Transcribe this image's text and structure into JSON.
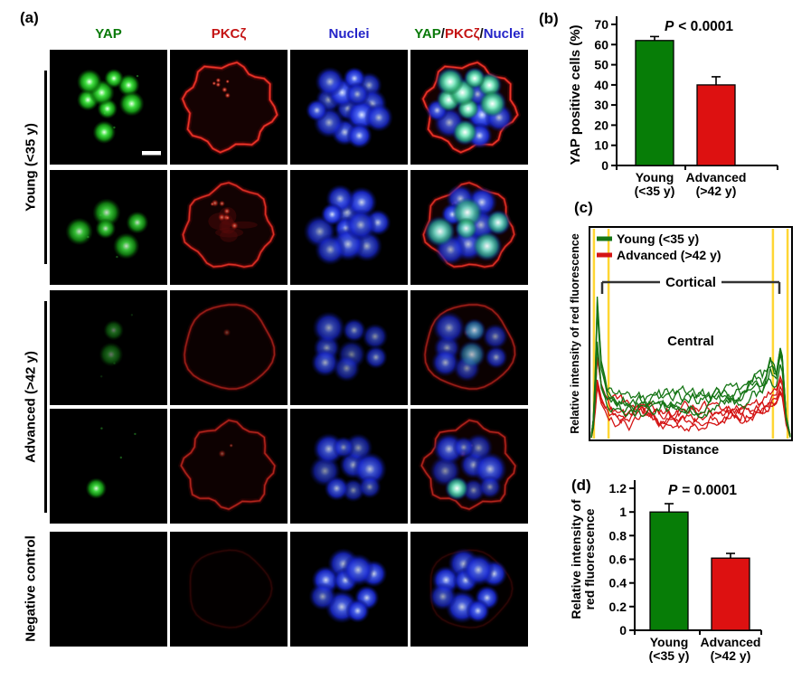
{
  "panels": {
    "a": {
      "label": "(a)",
      "column_headers": [
        {
          "text": "YAP",
          "color": "#0a7a0a"
        },
        {
          "text": "PKCζ",
          "color": "#c41414"
        },
        {
          "text": "Nuclei",
          "color": "#2323c8"
        },
        {
          "text": "YAP/PKCζ/Nuclei",
          "segments": [
            {
              "text": "YAP",
              "color": "#0a7a0a"
            },
            {
              "text": "/",
              "color": "#111111"
            },
            {
              "text": "PKCζ",
              "color": "#c41414"
            },
            {
              "text": "/",
              "color": "#111111"
            },
            {
              "text": "Nuclei",
              "color": "#2323c8"
            }
          ]
        }
      ],
      "row_groups": [
        {
          "label": "Young (<35 y)",
          "bracket": true
        },
        {
          "label": "Advanced (>42 y)",
          "bracket": true
        },
        {
          "label": "Negative control",
          "bracket": false
        }
      ],
      "rows": [
        {
          "name": "young-embryo-1",
          "nuclei": 15,
          "yap_positive": 8,
          "green_intensity": 1.0,
          "red_intensity": 1.0,
          "blue_intensity": 1.0,
          "red_style": "lumpy",
          "speckles": 6,
          "scale_bar": true
        },
        {
          "name": "young-embryo-2",
          "nuclei": 11,
          "yap_positive": 5,
          "green_intensity": 0.85,
          "red_intensity": 0.85,
          "blue_intensity": 1.0,
          "red_style": "textured",
          "speckles": 8,
          "scale_bar": false
        },
        {
          "name": "advanced-embryo-1",
          "nuclei": 8,
          "yap_positive": 2,
          "green_intensity": 0.45,
          "red_intensity": 0.5,
          "blue_intensity": 0.75,
          "red_style": "smooth",
          "speckles": 1,
          "scale_bar": false
        },
        {
          "name": "advanced-embryo-2",
          "nuclei": 9,
          "yap_positive": 1,
          "green_intensity": 0.95,
          "red_intensity": 0.6,
          "blue_intensity": 0.85,
          "red_style": "lumpy",
          "speckles": 2,
          "scale_bar": false
        },
        {
          "name": "negative-control",
          "nuclei": 9,
          "yap_positive": 0,
          "green_intensity": 0.0,
          "red_intensity": 0.12,
          "blue_intensity": 0.95,
          "red_style": "smooth",
          "speckles": 0,
          "scale_bar": false
        }
      ]
    },
    "b": {
      "label": "(b)"
    },
    "c": {
      "label": "(c)"
    },
    "d": {
      "label": "(d)"
    }
  },
  "chart_data": [
    {
      "id": "b",
      "type": "bar",
      "title": "P < 0.0001",
      "ylabel": "YAP positive cells (%)",
      "categories": [
        [
          "Young",
          "(<35 y)"
        ],
        [
          "Advanced",
          "(>42 y)"
        ]
      ],
      "values": [
        62,
        40
      ],
      "errors": [
        2,
        4
      ],
      "bar_colors": [
        "#077d07",
        "#dd1111"
      ],
      "ylim": [
        0,
        70
      ],
      "ytick_step": 10,
      "ytick_labels": [
        "0",
        "10",
        "20",
        "30",
        "40",
        "50",
        "60",
        "70"
      ],
      "grid": false,
      "legend_position": "none"
    },
    {
      "id": "c",
      "type": "line",
      "ylabel": "Relative intensity of red fluorescence",
      "xlabel": "Distance",
      "region_labels": {
        "cortical": "Cortical",
        "central": "Central"
      },
      "boundary_lines_x": [
        0.022,
        0.094,
        0.906,
        0.978
      ],
      "boundary_color": "#ffd633",
      "replicates_per_group": 5,
      "xlim": [
        0,
        1
      ],
      "ylim": [
        0,
        1
      ],
      "grid": false,
      "legend_position": "top-left",
      "series": [
        {
          "name": "Young (<35 y)",
          "color": "#157515",
          "x": [
            0,
            0.015,
            0.03,
            0.05,
            0.08,
            0.12,
            0.2,
            0.3,
            0.4,
            0.5,
            0.6,
            0.68,
            0.72,
            0.78,
            0.82,
            0.86,
            0.9,
            0.93,
            0.955,
            0.98,
            1
          ],
          "y": [
            0.01,
            0.12,
            0.62,
            0.34,
            0.23,
            0.2,
            0.19,
            0.18,
            0.19,
            0.18,
            0.19,
            0.2,
            0.19,
            0.22,
            0.28,
            0.25,
            0.34,
            0.3,
            0.45,
            0.1,
            0.01
          ]
        },
        {
          "name": "Advanced (>42 y)",
          "color": "#d41414",
          "x": [
            0,
            0.015,
            0.03,
            0.05,
            0.08,
            0.12,
            0.2,
            0.3,
            0.4,
            0.5,
            0.6,
            0.68,
            0.72,
            0.78,
            0.82,
            0.86,
            0.9,
            0.93,
            0.955,
            0.98,
            1
          ],
          "y": [
            0.01,
            0.1,
            0.33,
            0.22,
            0.15,
            0.13,
            0.12,
            0.11,
            0.11,
            0.11,
            0.12,
            0.12,
            0.12,
            0.13,
            0.14,
            0.15,
            0.18,
            0.2,
            0.28,
            0.08,
            0.01
          ]
        }
      ]
    },
    {
      "id": "d",
      "type": "bar",
      "title": "P = 0.0001",
      "ylabel": [
        "Relative intensity of",
        "red fluorescence"
      ],
      "categories": [
        [
          "Young",
          "(<35 y)"
        ],
        [
          "Advanced",
          "(>42 y)"
        ]
      ],
      "values": [
        1.0,
        0.61
      ],
      "errors": [
        0.07,
        0.04
      ],
      "bar_colors": [
        "#077d07",
        "#dd1111"
      ],
      "ylim": [
        0,
        1.2
      ],
      "ytick_step": 0.2,
      "ytick_labels": [
        "0",
        "0.2",
        "0.4",
        "0.6",
        "0.8",
        "1",
        "1.2"
      ],
      "grid": false,
      "legend_position": "none"
    }
  ]
}
